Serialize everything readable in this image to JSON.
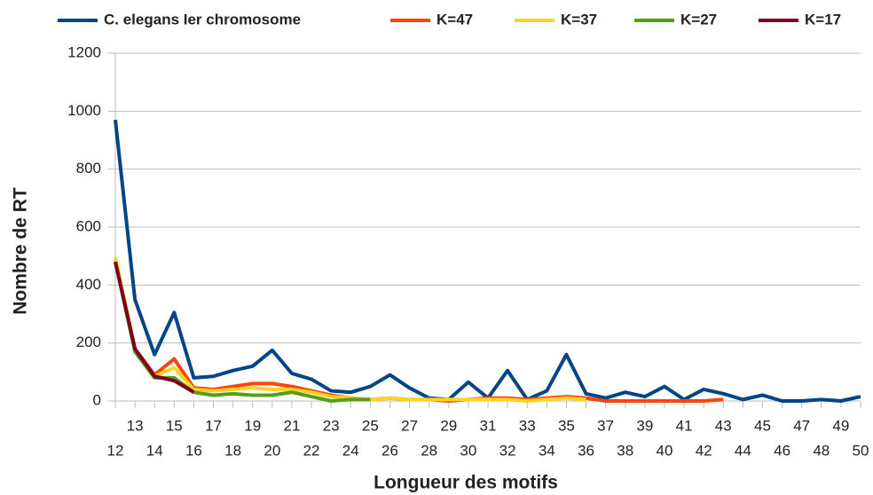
{
  "chart_data": {
    "type": "line",
    "xlabel": "Longueur des motifs",
    "ylabel": "Nombre de RT",
    "x": [
      12,
      13,
      14,
      15,
      16,
      17,
      18,
      19,
      20,
      21,
      22,
      23,
      24,
      25,
      26,
      27,
      28,
      29,
      30,
      31,
      32,
      33,
      34,
      35,
      36,
      37,
      38,
      39,
      40,
      41,
      42,
      43,
      44,
      45,
      46,
      47,
      48,
      49,
      50
    ],
    "xlim": [
      12,
      50
    ],
    "xticks": [
      12,
      13,
      14,
      15,
      16,
      17,
      18,
      19,
      20,
      21,
      22,
      23,
      24,
      25,
      26,
      27,
      28,
      29,
      30,
      31,
      32,
      33,
      34,
      35,
      36,
      37,
      38,
      39,
      40,
      41,
      42,
      43,
      44,
      45,
      46,
      47,
      48,
      49,
      50
    ],
    "ylim": [
      0,
      1200
    ],
    "yticks": [
      0,
      200,
      400,
      600,
      800,
      1000,
      1200
    ],
    "grid": true,
    "legend": "top",
    "series": [
      {
        "name": "C. elegans Ier chromosome",
        "color": "#004586",
        "values": [
          970,
          350,
          160,
          305,
          80,
          85,
          105,
          120,
          175,
          95,
          75,
          35,
          30,
          50,
          90,
          45,
          10,
          5,
          65,
          10,
          105,
          5,
          35,
          160,
          25,
          10,
          30,
          15,
          50,
          5,
          40,
          25,
          5,
          20,
          0,
          0,
          5,
          0,
          15
        ]
      },
      {
        "name": "K=47",
        "color": "#ff420e",
        "values": [
          490,
          180,
          90,
          145,
          45,
          40,
          50,
          60,
          60,
          50,
          35,
          20,
          10,
          5,
          10,
          5,
          5,
          0,
          5,
          10,
          10,
          5,
          10,
          15,
          10,
          0,
          0,
          0,
          0,
          0,
          0,
          5,
          null,
          null,
          null,
          null,
          null,
          null,
          null
        ]
      },
      {
        "name": "K=37",
        "color": "#ffd320",
        "values": [
          495,
          180,
          85,
          115,
          40,
          35,
          40,
          45,
          40,
          40,
          30,
          15,
          10,
          5,
          10,
          5,
          5,
          5,
          5,
          5,
          5,
          0,
          5,
          10,
          5,
          null,
          null,
          null,
          null,
          null,
          null,
          null,
          null,
          null,
          null,
          null,
          null,
          null,
          null
        ]
      },
      {
        "name": "K=27",
        "color": "#579d1c",
        "values": [
          480,
          170,
          80,
          80,
          30,
          20,
          25,
          20,
          20,
          30,
          15,
          0,
          5,
          5,
          null,
          null,
          null,
          null,
          null,
          null,
          null,
          null,
          null,
          null,
          null,
          null,
          null,
          null,
          null,
          null,
          null,
          null,
          null,
          null,
          null,
          null,
          null,
          null,
          null
        ]
      },
      {
        "name": "K=17",
        "color": "#7e0021",
        "values": [
          480,
          180,
          85,
          70,
          30,
          null,
          null,
          null,
          null,
          null,
          null,
          null,
          null,
          null,
          null,
          null,
          null,
          null,
          null,
          null,
          null,
          null,
          null,
          null,
          null,
          null,
          null,
          null,
          null,
          null,
          null,
          null,
          null,
          null,
          null,
          null,
          null,
          null,
          null
        ]
      }
    ]
  }
}
